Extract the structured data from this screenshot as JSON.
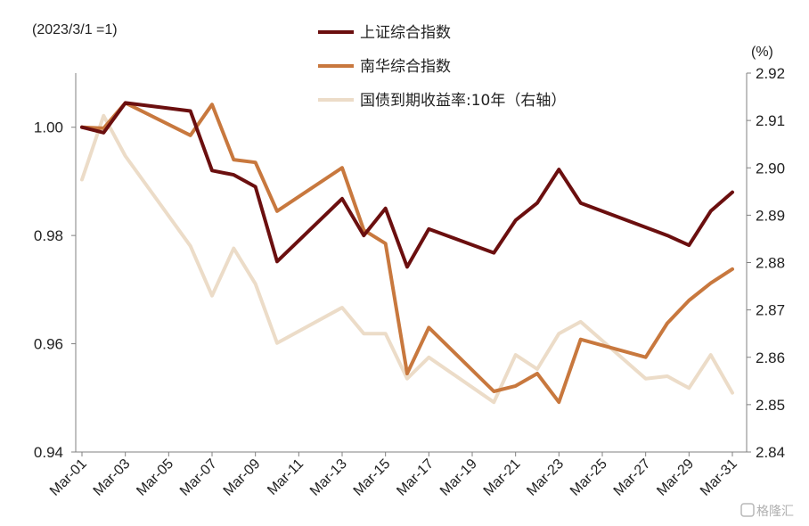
{
  "chart_data": {
    "type": "line",
    "left_axis_note": "(2023/3/1 =1)",
    "right_axis_note": "(%)",
    "x": [
      "Mar-01",
      "Mar-02",
      "Mar-03",
      "Mar-06",
      "Mar-07",
      "Mar-08",
      "Mar-09",
      "Mar-10",
      "Mar-13",
      "Mar-14",
      "Mar-15",
      "Mar-16",
      "Mar-17",
      "Mar-20",
      "Mar-21",
      "Mar-22",
      "Mar-23",
      "Mar-24",
      "Mar-27",
      "Mar-28",
      "Mar-29",
      "Mar-30",
      "Mar-31"
    ],
    "x_tick_labels": [
      "Mar-01",
      "Mar-03",
      "Mar-05",
      "Mar-07",
      "Mar-09",
      "Mar-11",
      "Mar-13",
      "Mar-15",
      "Mar-17",
      "Mar-19",
      "Mar-21",
      "Mar-23",
      "Mar-25",
      "Mar-27",
      "Mar-29",
      "Mar-31"
    ],
    "y_left": {
      "ylim": [
        0.94,
        1.01
      ],
      "ticks": [
        "0.94",
        "0.96",
        "0.98",
        "1.00"
      ]
    },
    "y_right": {
      "ylim": [
        2.84,
        2.92
      ],
      "ticks": [
        "2.84",
        "2.85",
        "2.86",
        "2.87",
        "2.88",
        "2.89",
        "2.90",
        "2.91",
        "2.92"
      ]
    },
    "legend_position": "top-center",
    "series": [
      {
        "name": "上证综合指数",
        "axis": "left",
        "color": "#6b0f0f",
        "values": [
          1.0,
          0.999,
          1.0045,
          1.003,
          0.992,
          0.9912,
          0.989,
          0.9752,
          0.9868,
          0.98,
          0.985,
          0.9742,
          0.9812,
          0.9768,
          0.9828,
          0.986,
          0.9922,
          0.986,
          0.9815,
          0.98,
          0.9782,
          0.9845,
          0.988
        ]
      },
      {
        "name": "南华综合指数",
        "axis": "left",
        "color": "#c8783e",
        "values": [
          1.0,
          0.9998,
          1.0045,
          0.9985,
          1.0042,
          0.994,
          0.9935,
          0.9845,
          0.9925,
          0.981,
          0.9785,
          0.9545,
          0.963,
          0.9512,
          0.9522,
          0.9545,
          0.9492,
          0.9608,
          0.9575,
          0.9638,
          0.968,
          0.9712,
          0.9738
        ]
      },
      {
        "name": "国债到期收益率:10年（右轴）",
        "axis": "right",
        "color": "#ecdcc8",
        "values": [
          2.8975,
          2.911,
          2.9025,
          2.8835,
          2.873,
          2.883,
          2.8755,
          2.863,
          2.8705,
          2.865,
          2.865,
          2.8555,
          2.86,
          2.8505,
          2.8605,
          2.8575,
          2.865,
          2.8675,
          2.8555,
          2.856,
          2.8535,
          2.8605,
          2.8525
        ]
      }
    ]
  },
  "watermark": {
    "text": "格隆汇",
    "icon": "gelonghui-logo-icon"
  }
}
